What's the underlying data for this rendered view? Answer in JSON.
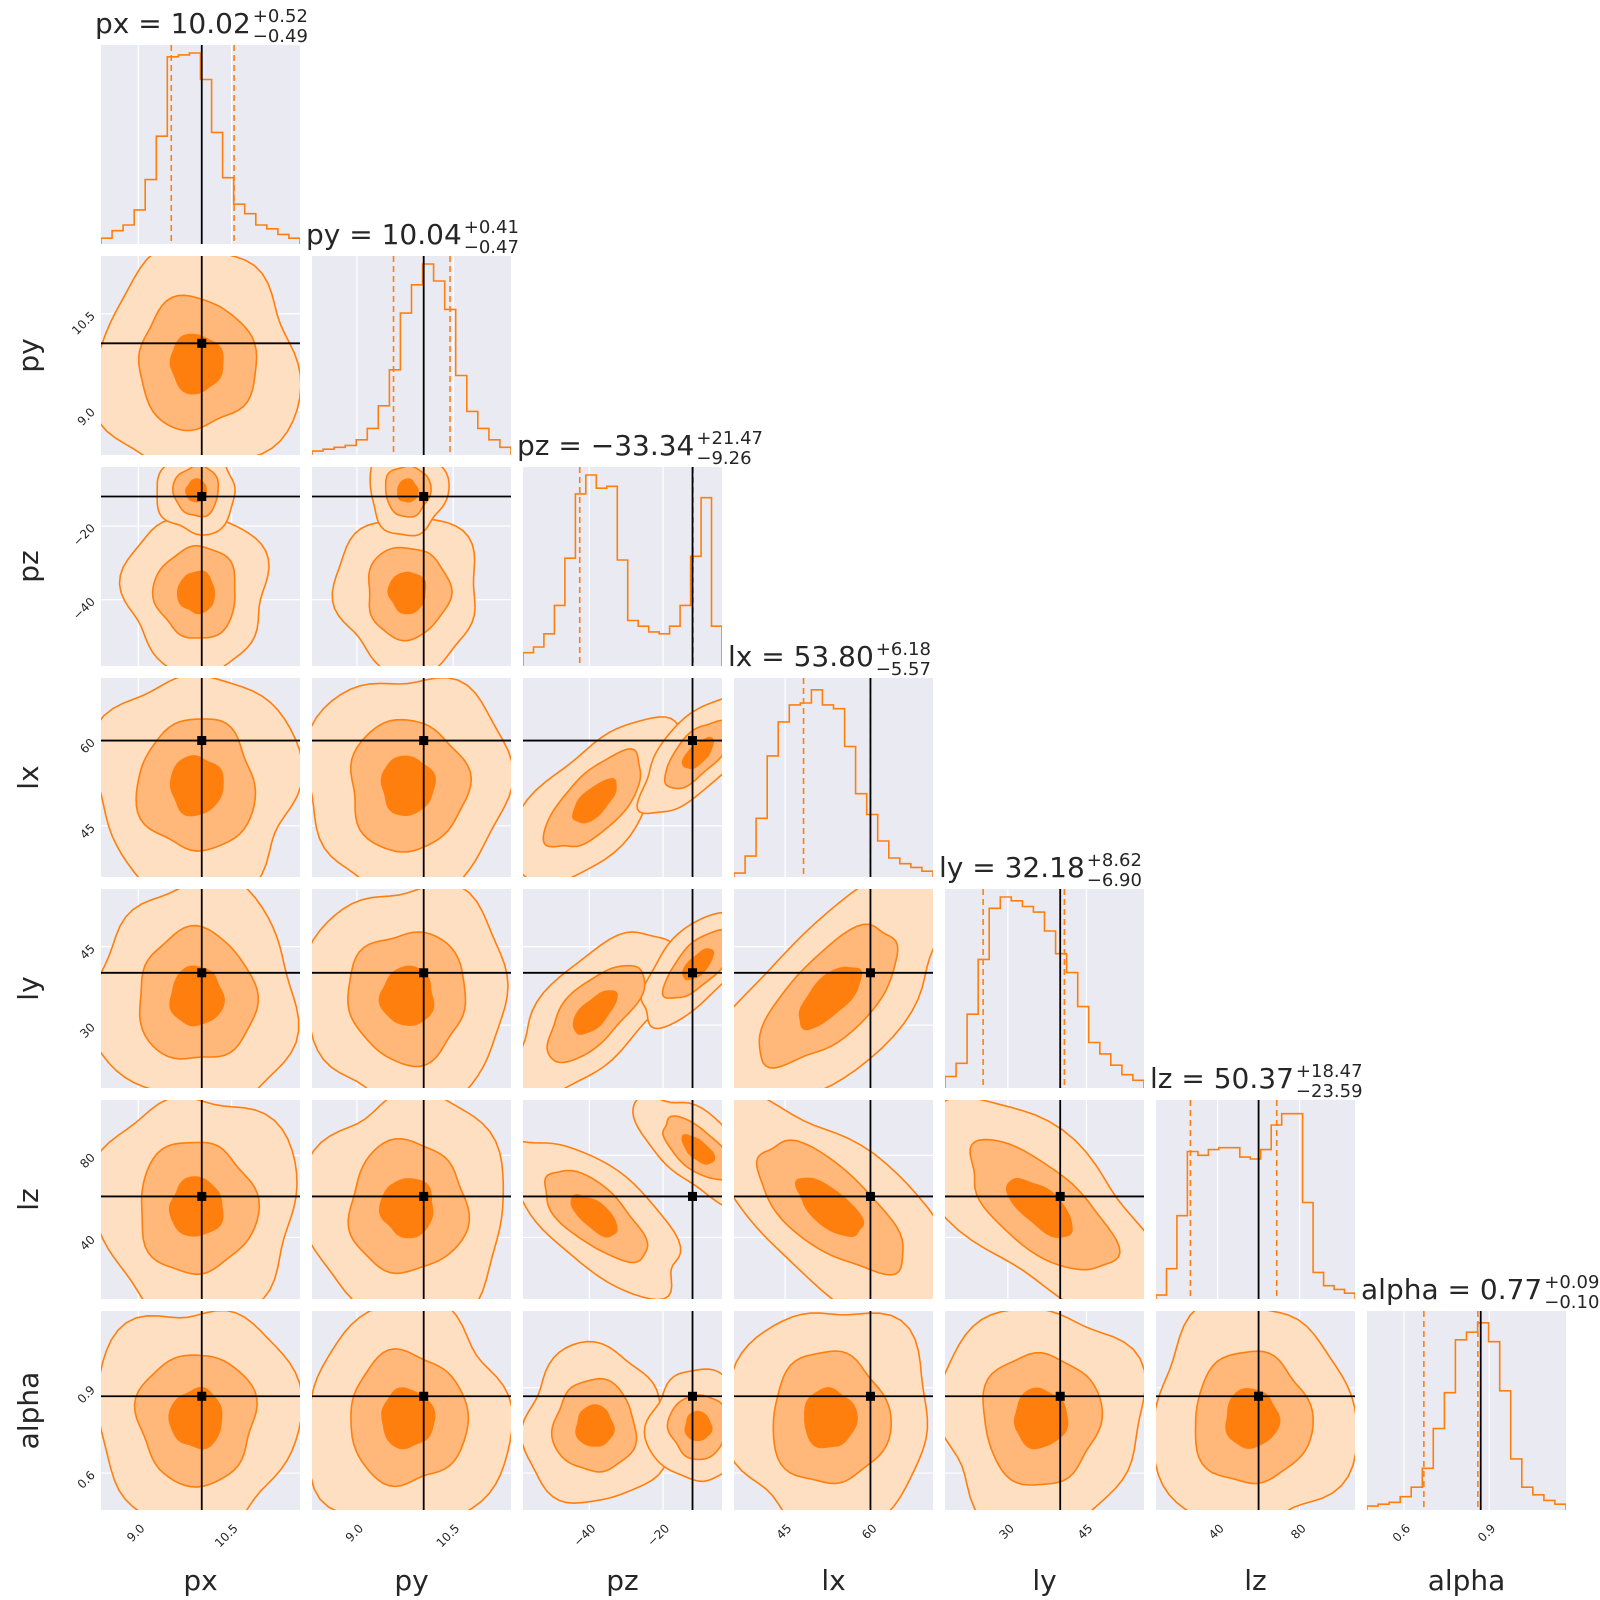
{
  "chart_data": {
    "type": "corner",
    "params": [
      "px",
      "py",
      "pz",
      "lx",
      "ly",
      "lz",
      "alpha"
    ],
    "axis_labels": [
      "px",
      "py",
      "pz",
      "lx",
      "ly",
      "lz",
      "alpha"
    ],
    "ranges": [
      [
        8.4,
        11.6
      ],
      [
        8.3,
        11.4
      ],
      [
        -58,
        -4
      ],
      [
        36,
        71
      ],
      [
        18,
        56
      ],
      [
        10,
        107
      ],
      [
        0.47,
        1.17
      ]
    ],
    "truths": [
      10.02,
      10.04,
      -12.0,
      60.0,
      40.0,
      60.0,
      0.87
    ],
    "quantiles": [
      [
        9.53,
        10.54
      ],
      [
        9.57,
        10.45
      ],
      [
        -42.6,
        -11.87
      ],
      [
        48.23,
        59.98
      ],
      [
        25.28,
        40.8
      ],
      [
        26.78,
        68.84
      ],
      [
        0.67,
        0.86
      ]
    ],
    "titles": [
      {
        "main": "px = 10.02",
        "sup": "+0.52",
        "sub": "−0.49"
      },
      {
        "main": "py = 10.04",
        "sup": "+0.41",
        "sub": "−0.47"
      },
      {
        "main": "pz = −33.34",
        "sup": "+21.47",
        "sub": "−9.26"
      },
      {
        "main": "lx = 53.80",
        "sup": "+6.18",
        "sub": "−5.57"
      },
      {
        "main": "ly = 32.18",
        "sup": "+8.62",
        "sub": "−6.90"
      },
      {
        "main": "lz = 50.37",
        "sup": "+18.47",
        "sub": "−23.59"
      },
      {
        "main": "alpha = 0.77",
        "sup": "+0.09",
        "sub": "−0.10"
      }
    ],
    "ticks": [
      {
        "values": [
          9.0,
          10.5
        ],
        "labels": [
          "9.0",
          "10.5"
        ]
      },
      {
        "values": [
          9.0,
          10.5
        ],
        "labels": [
          "9.0",
          "10.5"
        ]
      },
      {
        "values": [
          -40,
          -20
        ],
        "labels": [
          "−40",
          "−20"
        ]
      },
      {
        "values": [
          45,
          60
        ],
        "labels": [
          "45",
          "60"
        ]
      },
      {
        "values": [
          30,
          45
        ],
        "labels": [
          "30",
          "45"
        ]
      },
      {
        "values": [
          40,
          80
        ],
        "labels": [
          "40",
          "80"
        ]
      },
      {
        "values": [
          0.6,
          0.9
        ],
        "labels": [
          "0.6",
          "0.9"
        ]
      }
    ],
    "histograms": [
      [
        0.02,
        0.06,
        0.09,
        0.17,
        0.33,
        0.56,
        0.98,
        0.99,
        1.0,
        0.86,
        0.58,
        0.34,
        0.2,
        0.15,
        0.09,
        0.07,
        0.04,
        0.02
      ],
      [
        0.01,
        0.02,
        0.03,
        0.04,
        0.07,
        0.13,
        0.25,
        0.44,
        0.74,
        0.89,
        1.0,
        0.91,
        0.76,
        0.41,
        0.22,
        0.13,
        0.07,
        0.03
      ],
      [
        0.06,
        0.09,
        0.16,
        0.31,
        0.56,
        0.9,
        1.0,
        0.93,
        0.94,
        0.55,
        0.23,
        0.2,
        0.17,
        0.16,
        0.2,
        0.31,
        0.57,
        0.88,
        0.2
      ],
      [
        0.01,
        0.1,
        0.3,
        0.63,
        0.81,
        0.9,
        0.91,
        0.98,
        0.9,
        0.88,
        0.68,
        0.43,
        0.32,
        0.18,
        0.09,
        0.06,
        0.04,
        0.02
      ],
      [
        0.05,
        0.12,
        0.38,
        0.67,
        0.94,
        1.0,
        0.98,
        0.95,
        0.92,
        0.82,
        0.7,
        0.6,
        0.42,
        0.23,
        0.17,
        0.11,
        0.06,
        0.03
      ],
      [
        0.01,
        0.15,
        0.43,
        0.77,
        0.75,
        0.78,
        0.79,
        0.79,
        0.74,
        0.73,
        0.78,
        0.91,
        0.97,
        0.97,
        0.5,
        0.13,
        0.06,
        0.04,
        0.02
      ],
      [
        0.01,
        0.02,
        0.03,
        0.06,
        0.11,
        0.21,
        0.42,
        0.61,
        0.89,
        0.93,
        0.98,
        0.88,
        0.62,
        0.26,
        0.11,
        0.07,
        0.04,
        0.02
      ]
    ],
    "contour_levels": [
      0.5,
      0.85,
      1.0
    ],
    "colors": {
      "panel_bg": "#EAEAF2",
      "grid": "#FFFFFF",
      "line": "#FF7F0E",
      "fill_outer": "#FFDFC1",
      "fill_mid": "#FFB87A",
      "fill_inner": "#FF7F0E",
      "truth": "#000000",
      "text": "#262626"
    }
  }
}
